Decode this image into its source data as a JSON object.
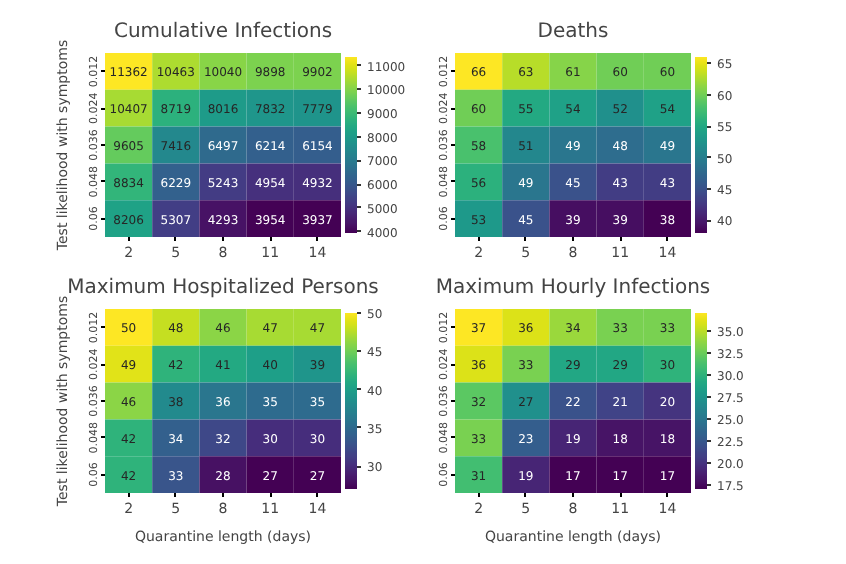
{
  "chart_data": [
    {
      "type": "heatmap",
      "title": "Cumulative Infections",
      "ylabel": "Test likelihood with symptoms",
      "categories": [
        "2",
        "5",
        "8",
        "11",
        "14"
      ],
      "y_categories": [
        "0.012",
        "0.024",
        "0.036",
        "0.048",
        "0.06"
      ],
      "cells": [
        [
          11362,
          10463,
          10040,
          9898,
          9902
        ],
        [
          10407,
          8719,
          8016,
          7832,
          7779
        ],
        [
          9605,
          7416,
          6497,
          6214,
          6154
        ],
        [
          8834,
          6229,
          5243,
          4954,
          4932
        ],
        [
          8206,
          5307,
          4293,
          3954,
          3937
        ]
      ],
      "clim": [
        3937,
        11362
      ],
      "cticks": [
        4000,
        5000,
        6000,
        7000,
        8000,
        9000,
        10000,
        11000
      ],
      "data_labels": true
    },
    {
      "type": "heatmap",
      "title": "Deaths",
      "categories": [
        "2",
        "5",
        "8",
        "11",
        "14"
      ],
      "y_categories": [
        "0.012",
        "0.024",
        "0.036",
        "0.048",
        "0.06"
      ],
      "cells": [
        [
          66,
          63,
          61,
          60,
          60
        ],
        [
          60,
          55,
          54,
          52,
          54
        ],
        [
          58,
          51,
          49,
          48,
          49
        ],
        [
          56,
          49,
          45,
          43,
          43
        ],
        [
          53,
          45,
          39,
          39,
          38
        ]
      ],
      "clim": [
        38,
        66
      ],
      "cticks": [
        40,
        45,
        50,
        55,
        60,
        65
      ],
      "data_labels": true
    },
    {
      "type": "heatmap",
      "title": "Maximum Hospitalized Persons",
      "xlabel": "Quarantine length (days)",
      "ylabel": "Test likelihood with symptoms",
      "categories": [
        "2",
        "5",
        "8",
        "11",
        "14"
      ],
      "y_categories": [
        "0.012",
        "0.024",
        "0.036",
        "0.048",
        "0.06"
      ],
      "cells": [
        [
          50,
          48,
          46,
          47,
          47
        ],
        [
          49,
          42,
          41,
          40,
          39
        ],
        [
          46,
          38,
          36,
          35,
          35
        ],
        [
          42,
          34,
          32,
          30,
          30
        ],
        [
          42,
          33,
          28,
          27,
          27
        ]
      ],
      "clim": [
        27,
        50
      ],
      "cticks": [
        30,
        35,
        40,
        45,
        50
      ],
      "data_labels": true
    },
    {
      "type": "heatmap",
      "title": "Maximum Hourly Infections",
      "xlabel": "Quarantine length (days)",
      "categories": [
        "2",
        "5",
        "8",
        "11",
        "14"
      ],
      "y_categories": [
        "0.012",
        "0.024",
        "0.036",
        "0.048",
        "0.06"
      ],
      "cells": [
        [
          37,
          36,
          34,
          33,
          33
        ],
        [
          36,
          33,
          29,
          29,
          30
        ],
        [
          32,
          27,
          22,
          21,
          20
        ],
        [
          33,
          23,
          19,
          18,
          18
        ],
        [
          31,
          19,
          17,
          17,
          17
        ]
      ],
      "clim": [
        17,
        37
      ],
      "cticks": [
        {
          "value": 17.5,
          "label": "17.5"
        },
        {
          "value": 20,
          "label": "20.0"
        },
        {
          "value": 22.5,
          "label": "22.5"
        },
        {
          "value": 25,
          "label": "25.0"
        },
        {
          "value": 27.5,
          "label": "27.5"
        },
        {
          "value": 30,
          "label": "30.0"
        },
        {
          "value": 32.5,
          "label": "32.5"
        },
        {
          "value": 35,
          "label": "35.0"
        }
      ],
      "data_labels": true
    }
  ]
}
